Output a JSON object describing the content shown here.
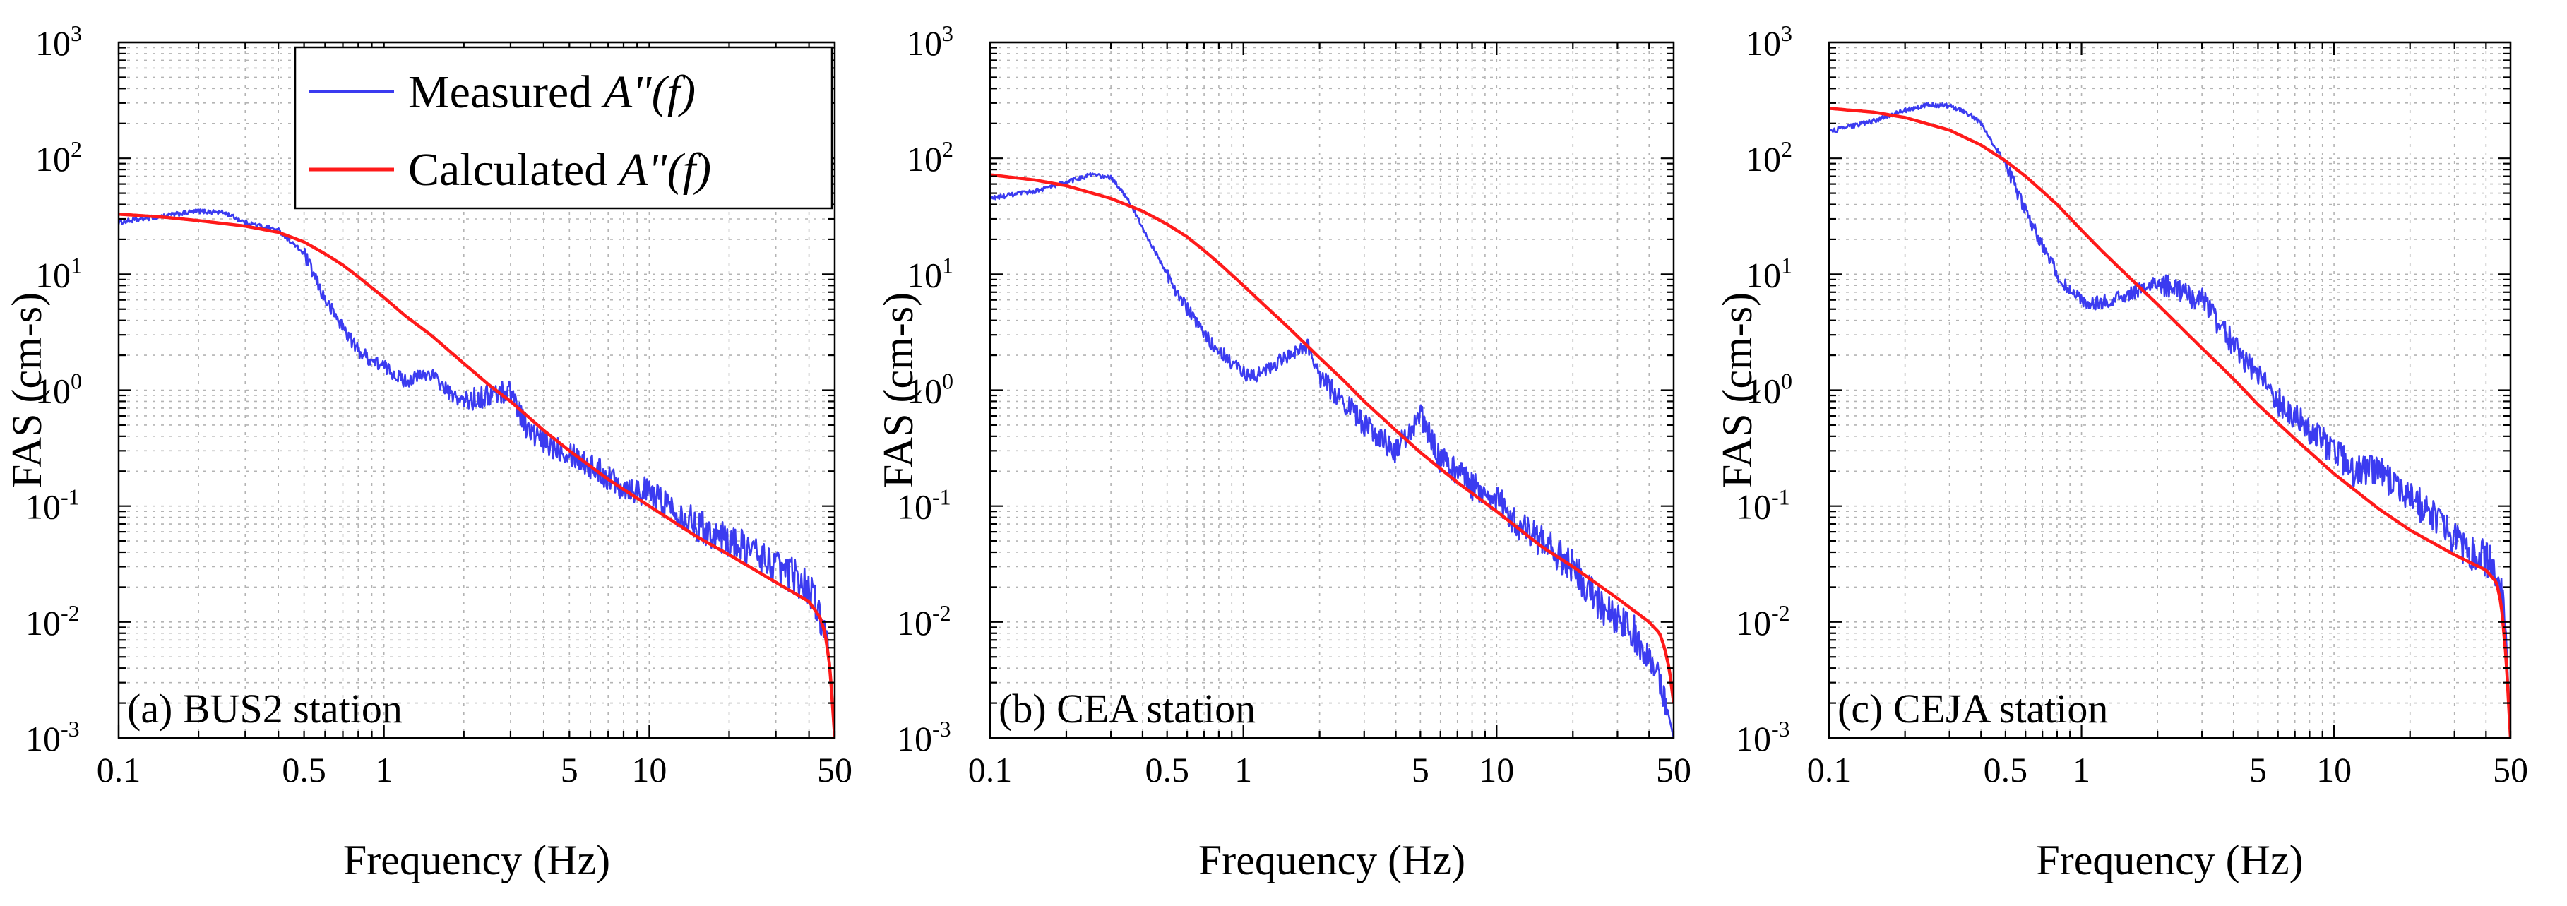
{
  "chart_data": [
    {
      "type": "line",
      "panel_label": "(a) BUS2 station",
      "xlabel": "Frequency (Hz)",
      "ylabel": "FAS (cm-s)",
      "xscale": "log",
      "yscale": "log",
      "xlim": [
        0.1,
        50
      ],
      "ylim": [
        0.001,
        1000
      ],
      "x_ticks": [
        {
          "value": 0.1,
          "label": "0.1"
        },
        {
          "value": 0.5,
          "label": "0.5"
        },
        {
          "value": 1,
          "label": "1"
        },
        {
          "value": 5,
          "label": "5"
        },
        {
          "value": 10,
          "label": "10"
        },
        {
          "value": 50,
          "label": "50"
        }
      ],
      "y_ticks": [
        {
          "value": 0.001,
          "base": "10",
          "exp": "-3"
        },
        {
          "value": 0.01,
          "base": "10",
          "exp": "-2"
        },
        {
          "value": 0.1,
          "base": "10",
          "exp": "-1"
        },
        {
          "value": 1,
          "base": "10",
          "exp": "0"
        },
        {
          "value": 10,
          "base": "10",
          "exp": "1"
        },
        {
          "value": 100,
          "base": "10",
          "exp": "2"
        },
        {
          "value": 1000,
          "base": "10",
          "exp": "3"
        }
      ],
      "grid": true,
      "legend": {
        "placement": "top-right"
      },
      "series": [
        {
          "name": "Measured",
          "color": "#3b3bf0",
          "noisy": true,
          "x": [
            0.1,
            0.15,
            0.2,
            0.25,
            0.3,
            0.4,
            0.5,
            0.6,
            0.7,
            0.8,
            0.9,
            1.0,
            1.2,
            1.5,
            1.8,
            2.0,
            2.5,
            3.0,
            3.5,
            4.0,
            5.0,
            6.0,
            7.0,
            8.0,
            10,
            12,
            15,
            20,
            25,
            30,
            35,
            40,
            45,
            48,
            50
          ],
          "y": [
            28,
            32,
            35,
            34,
            28,
            24,
            15,
            6,
            3.5,
            2.2,
            1.8,
            1.6,
            1.2,
            1.4,
            0.9,
            0.8,
            0.9,
            1.0,
            0.45,
            0.35,
            0.3,
            0.22,
            0.18,
            0.15,
            0.13,
            0.1,
            0.07,
            0.05,
            0.04,
            0.03,
            0.025,
            0.02,
            0.01,
            0.004,
            0.001
          ]
        },
        {
          "name": "Calculated",
          "color": "#ff1a1a",
          "noisy": false,
          "x": [
            0.1,
            0.15,
            0.2,
            0.3,
            0.4,
            0.5,
            0.6,
            0.7,
            0.8,
            1.0,
            1.2,
            1.5,
            2.0,
            2.5,
            3.0,
            4.0,
            5.0,
            7.0,
            10,
            15,
            20,
            30,
            40,
            44,
            46,
            48,
            50
          ],
          "y": [
            33,
            31,
            29,
            26,
            23,
            19,
            15,
            12,
            9.5,
            6.3,
            4.4,
            3.0,
            1.7,
            1.1,
            0.8,
            0.45,
            0.3,
            0.17,
            0.1,
            0.055,
            0.038,
            0.022,
            0.015,
            0.011,
            0.008,
            0.004,
            0.001
          ]
        }
      ]
    },
    {
      "type": "line",
      "panel_label": "(b) CEA station",
      "xlabel": "Frequency (Hz)",
      "ylabel": "FAS (cm-s)",
      "xscale": "log",
      "yscale": "log",
      "xlim": [
        0.1,
        50
      ],
      "ylim": [
        0.001,
        1000
      ],
      "x_ticks": [
        {
          "value": 0.1,
          "label": "0.1"
        },
        {
          "value": 0.5,
          "label": "0.5"
        },
        {
          "value": 1,
          "label": "1"
        },
        {
          "value": 5,
          "label": "5"
        },
        {
          "value": 10,
          "label": "10"
        },
        {
          "value": 50,
          "label": "50"
        }
      ],
      "y_ticks": [
        {
          "value": 0.001,
          "base": "10",
          "exp": "-3"
        },
        {
          "value": 0.01,
          "base": "10",
          "exp": "-2"
        },
        {
          "value": 0.1,
          "base": "10",
          "exp": "-1"
        },
        {
          "value": 1,
          "base": "10",
          "exp": "0"
        },
        {
          "value": 10,
          "base": "10",
          "exp": "1"
        },
        {
          "value": 100,
          "base": "10",
          "exp": "2"
        },
        {
          "value": 1000,
          "base": "10",
          "exp": "3"
        }
      ],
      "grid": true,
      "series": [
        {
          "name": "Measured",
          "color": "#3b3bf0",
          "noisy": true,
          "x": [
            0.1,
            0.15,
            0.2,
            0.25,
            0.3,
            0.35,
            0.4,
            0.5,
            0.6,
            0.7,
            0.8,
            1.0,
            1.1,
            1.3,
            1.5,
            1.8,
            2.0,
            2.5,
            3.0,
            4.0,
            5.0,
            6.0,
            7.0,
            8.0,
            10,
            12,
            15,
            20,
            25,
            30,
            35,
            40,
            45,
            48,
            50
          ],
          "y": [
            45,
            52,
            62,
            72,
            68,
            45,
            25,
            10,
            5,
            3,
            2.2,
            1.4,
            1.3,
            1.6,
            2.0,
            2.4,
            1.3,
            0.8,
            0.5,
            0.3,
            0.6,
            0.25,
            0.2,
            0.15,
            0.12,
            0.07,
            0.05,
            0.03,
            0.015,
            0.01,
            0.008,
            0.005,
            0.003,
            0.0015,
            0.001
          ]
        },
        {
          "name": "Calculated",
          "color": "#ff1a1a",
          "noisy": false,
          "x": [
            0.1,
            0.15,
            0.2,
            0.3,
            0.4,
            0.5,
            0.6,
            0.7,
            0.8,
            1.0,
            1.2,
            1.5,
            2.0,
            2.5,
            3.0,
            4.0,
            5.0,
            7.0,
            10,
            15,
            20,
            30,
            40,
            44,
            46,
            48,
            50
          ],
          "y": [
            72,
            65,
            58,
            45,
            35,
            27,
            21,
            16,
            12.5,
            8,
            5.5,
            3.5,
            1.9,
            1.2,
            0.8,
            0.45,
            0.29,
            0.16,
            0.09,
            0.045,
            0.03,
            0.016,
            0.01,
            0.008,
            0.006,
            0.004,
            0.002
          ]
        }
      ]
    },
    {
      "type": "line",
      "panel_label": "(c) CEJA station",
      "xlabel": "Frequency (Hz)",
      "ylabel": "FAS (cm-s)",
      "xscale": "log",
      "yscale": "log",
      "xlim": [
        0.1,
        50
      ],
      "ylim": [
        0.001,
        1000
      ],
      "x_ticks": [
        {
          "value": 0.1,
          "label": "0.1"
        },
        {
          "value": 0.5,
          "label": "0.5"
        },
        {
          "value": 1,
          "label": "1"
        },
        {
          "value": 5,
          "label": "5"
        },
        {
          "value": 10,
          "label": "10"
        },
        {
          "value": 50,
          "label": "50"
        }
      ],
      "y_ticks": [
        {
          "value": 0.001,
          "base": "10",
          "exp": "-3"
        },
        {
          "value": 0.01,
          "base": "10",
          "exp": "-2"
        },
        {
          "value": 0.1,
          "base": "10",
          "exp": "-1"
        },
        {
          "value": 1,
          "base": "10",
          "exp": "0"
        },
        {
          "value": 10,
          "base": "10",
          "exp": "1"
        },
        {
          "value": 100,
          "base": "10",
          "exp": "2"
        },
        {
          "value": 1000,
          "base": "10",
          "exp": "3"
        }
      ],
      "grid": true,
      "series": [
        {
          "name": "Measured",
          "color": "#3b3bf0",
          "noisy": true,
          "x": [
            0.1,
            0.15,
            0.2,
            0.25,
            0.3,
            0.35,
            0.4,
            0.5,
            0.6,
            0.7,
            0.8,
            0.9,
            1.0,
            1.1,
            1.3,
            1.5,
            2.0,
            2.5,
            3.0,
            4.0,
            5.0,
            6.0,
            7.0,
            8.0,
            10,
            12,
            15,
            20,
            25,
            30,
            35,
            40,
            45,
            48,
            50
          ],
          "y": [
            170,
            210,
            260,
            290,
            285,
            250,
            200,
            90,
            35,
            18,
            10,
            7,
            6,
            5.5,
            6,
            6.5,
            8.5,
            7,
            6,
            2.5,
            1.3,
            0.8,
            0.6,
            0.45,
            0.3,
            0.2,
            0.2,
            0.12,
            0.08,
            0.05,
            0.04,
            0.035,
            0.025,
            0.008,
            0.001
          ]
        },
        {
          "name": "Calculated",
          "color": "#ff1a1a",
          "noisy": false,
          "x": [
            0.1,
            0.15,
            0.2,
            0.3,
            0.4,
            0.5,
            0.6,
            0.7,
            0.8,
            1.0,
            1.2,
            1.5,
            2.0,
            2.5,
            3.0,
            4.0,
            5.0,
            7.0,
            10,
            15,
            20,
            30,
            40,
            44,
            46,
            48,
            50
          ],
          "y": [
            270,
            250,
            225,
            175,
            130,
            95,
            70,
            52,
            40,
            24,
            16,
            10,
            5.5,
            3.4,
            2.3,
            1.25,
            0.75,
            0.38,
            0.19,
            0.095,
            0.062,
            0.038,
            0.028,
            0.022,
            0.014,
            0.005,
            0.001
          ]
        }
      ]
    }
  ],
  "legend": {
    "measured_text": "Measured ",
    "calculated_text": "Calculated ",
    "math_label": "A\"(f)"
  }
}
